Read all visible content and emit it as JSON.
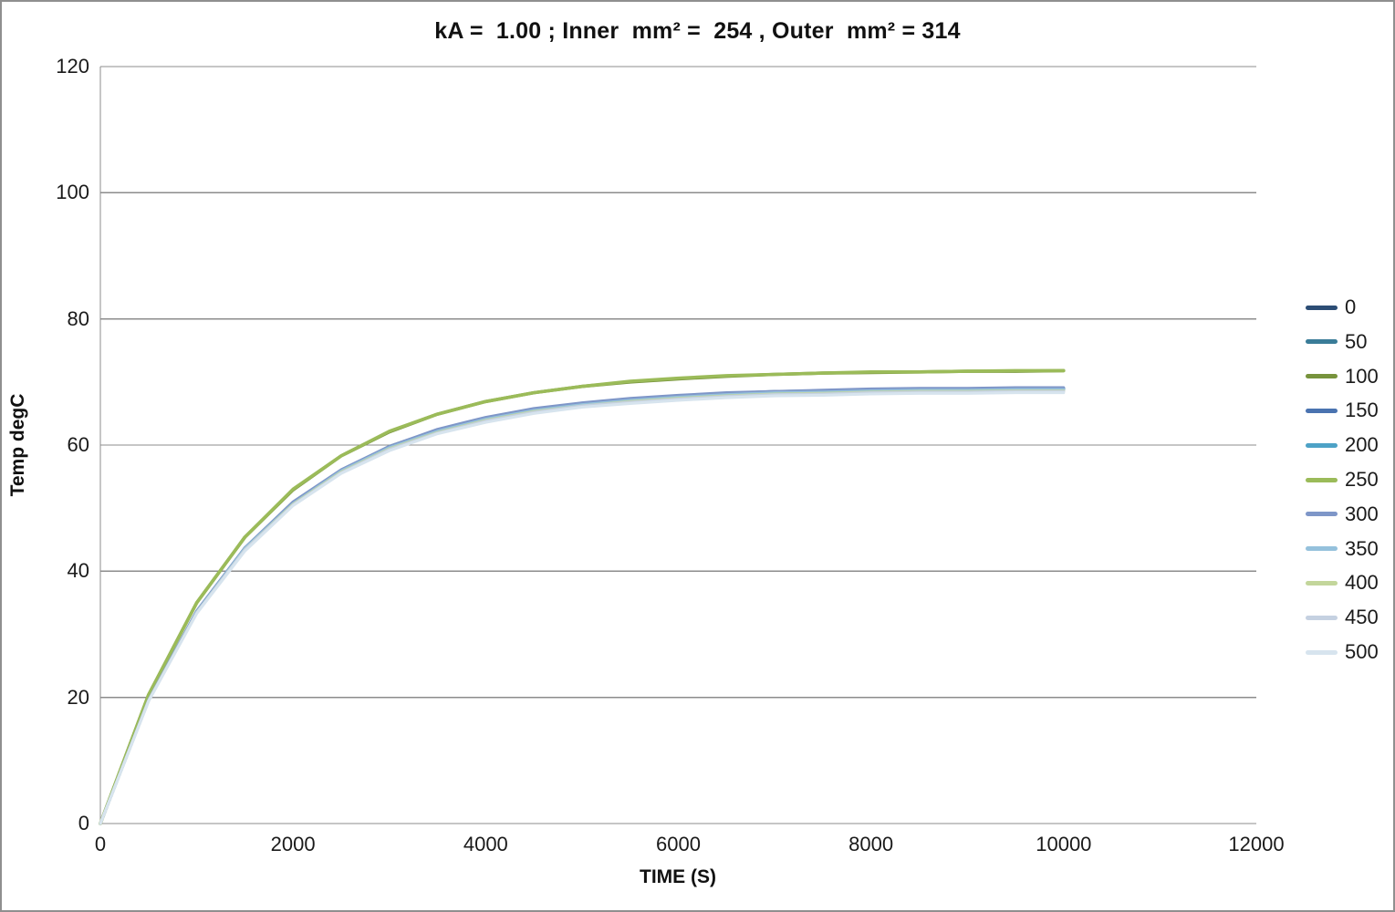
{
  "window": {
    "background": "#FFFFFF",
    "border_color": "#8F8F8F",
    "gridline_color": "#8C8C8C",
    "text_color": "#1A1A1A"
  },
  "chart_data": {
    "type": "line",
    "title": "kA =  1.00 ; Inner  mm² =  254 , Outer  mm² = 314",
    "xlabel": "TIME (S)",
    "ylabel": "Temp degC",
    "xlim": [
      0,
      12000
    ],
    "ylim": [
      0,
      120
    ],
    "xticks": [
      0,
      2000,
      4000,
      6000,
      8000,
      10000,
      12000
    ],
    "yticks": [
      0,
      20,
      40,
      60,
      80,
      100,
      120
    ],
    "grid": "horizontal-major-only",
    "legend_position": "right-outside",
    "x": [
      0,
      500,
      1000,
      1500,
      2000,
      2500,
      3000,
      3500,
      4000,
      4500,
      5000,
      5500,
      6000,
      6500,
      7000,
      7500,
      8000,
      8500,
      9000,
      9500,
      10000
    ],
    "series": [
      {
        "name": "0",
        "color": "#2C4D75",
        "values": [
          0,
          19.6,
          33.6,
          43.6,
          50.8,
          56.0,
          59.7,
          62.3,
          64.2,
          65.6,
          66.5,
          67.2,
          67.7,
          68.1,
          68.4,
          68.5,
          68.7,
          68.8,
          68.8,
          68.9,
          68.9
        ]
      },
      {
        "name": "50",
        "color": "#3A7C98",
        "values": [
          0,
          19.6,
          33.6,
          43.7,
          50.9,
          56.0,
          59.8,
          62.4,
          64.3,
          65.7,
          66.6,
          67.3,
          67.8,
          68.2,
          68.5,
          68.6,
          68.8,
          68.9,
          68.9,
          69.0,
          69.0
        ]
      },
      {
        "name": "100",
        "color": "#77933C",
        "values": [
          0,
          20.4,
          35.0,
          45.4,
          52.9,
          58.3,
          62.1,
          64.9,
          66.9,
          68.3,
          69.3,
          70.0,
          70.5,
          70.9,
          71.2,
          71.4,
          71.5,
          71.6,
          71.7,
          71.7,
          71.8
        ]
      },
      {
        "name": "150",
        "color": "#4A73B0",
        "values": [
          0,
          19.6,
          33.6,
          43.6,
          50.8,
          56.0,
          59.7,
          62.3,
          64.2,
          65.6,
          66.5,
          67.2,
          67.7,
          68.1,
          68.4,
          68.5,
          68.7,
          68.8,
          68.8,
          68.9,
          68.9
        ]
      },
      {
        "name": "200",
        "color": "#4DA2C6",
        "values": [
          0,
          19.5,
          33.5,
          43.6,
          50.7,
          55.9,
          59.6,
          62.2,
          64.1,
          65.5,
          66.4,
          67.1,
          67.6,
          68.0,
          68.3,
          68.4,
          68.6,
          68.7,
          68.7,
          68.8,
          68.8
        ]
      },
      {
        "name": "250",
        "color": "#9BBB59",
        "values": [
          0,
          20.4,
          35.0,
          45.4,
          53.0,
          58.3,
          62.2,
          64.9,
          66.9,
          68.3,
          69.3,
          70.1,
          70.6,
          71.0,
          71.2,
          71.4,
          71.6,
          71.6,
          71.7,
          71.8,
          71.8
        ]
      },
      {
        "name": "300",
        "color": "#7E96C8",
        "values": [
          0,
          19.6,
          33.7,
          43.7,
          51.0,
          56.1,
          59.8,
          62.5,
          64.4,
          65.8,
          66.7,
          67.4,
          67.9,
          68.3,
          68.5,
          68.7,
          68.9,
          69.0,
          69.0,
          69.1,
          69.1
        ]
      },
      {
        "name": "350",
        "color": "#95C1DC",
        "values": [
          0,
          19.5,
          33.5,
          43.6,
          50.7,
          55.9,
          59.6,
          62.2,
          64.1,
          65.5,
          66.4,
          67.1,
          67.6,
          68.0,
          68.3,
          68.4,
          68.6,
          68.7,
          68.7,
          68.8,
          68.8
        ]
      },
      {
        "name": "400",
        "color": "#C3D69B",
        "values": [
          0,
          19.5,
          33.4,
          43.4,
          50.6,
          55.7,
          59.4,
          62.0,
          63.9,
          65.3,
          66.2,
          66.9,
          67.4,
          67.8,
          68.1,
          68.2,
          68.4,
          68.5,
          68.5,
          68.6,
          68.6
        ]
      },
      {
        "name": "450",
        "color": "#C5D1E1",
        "values": [
          0,
          19.4,
          33.4,
          43.4,
          50.5,
          55.6,
          59.3,
          61.9,
          63.8,
          65.2,
          66.2,
          66.8,
          67.3,
          67.7,
          68.0,
          68.1,
          68.3,
          68.4,
          68.4,
          68.5,
          68.5
        ]
      },
      {
        "name": "500",
        "color": "#D7E4EE",
        "values": [
          0,
          19.4,
          33.3,
          43.2,
          50.4,
          55.5,
          59.1,
          61.8,
          63.6,
          65.0,
          66.0,
          66.6,
          67.1,
          67.5,
          67.8,
          67.9,
          68.1,
          68.2,
          68.2,
          68.3,
          68.3
        ]
      }
    ]
  }
}
